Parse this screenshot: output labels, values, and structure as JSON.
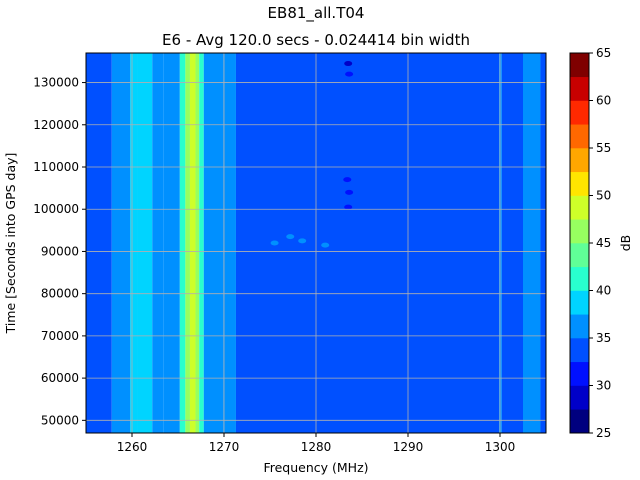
{
  "chart_data": {
    "type": "heatmap",
    "title": "EB81_all.T04",
    "subtitle": "E6 - Avg 120.0 secs - 0.024414 bin width",
    "xlabel": "Frequency (MHz)",
    "ylabel": "Time [Seconds into GPS day]",
    "xlim": [
      1255,
      1305
    ],
    "ylim": [
      47000,
      137000
    ],
    "xticks": [
      1260,
      1270,
      1280,
      1290,
      1300
    ],
    "yticks": [
      50000,
      60000,
      70000,
      80000,
      90000,
      100000,
      110000,
      120000,
      130000
    ],
    "grid": true,
    "colorbar": {
      "label": "dB",
      "min": 25,
      "max": 65,
      "ticks": [
        25,
        30,
        35,
        40,
        45,
        50,
        55,
        60,
        65
      ],
      "levels": 16,
      "colors": [
        "#00007f",
        "#0000c8",
        "#0010ff",
        "#0050ff",
        "#0090ff",
        "#00d4ff",
        "#29ffce",
        "#60ff97",
        "#97ff60",
        "#ceff29",
        "#ffe500",
        "#ffa700",
        "#ff6800",
        "#ff2900",
        "#c80000",
        "#7f0000"
      ]
    },
    "bands": [
      {
        "from": 1255.0,
        "to": 1257.8,
        "value": 33.5
      },
      {
        "from": 1257.8,
        "to": 1259.8,
        "value": 36.5
      },
      {
        "from": 1259.8,
        "to": 1260.6,
        "value": 37.5
      },
      {
        "from": 1260.6,
        "to": 1262.2,
        "value": 39.5
      },
      {
        "from": 1262.2,
        "to": 1263.4,
        "value": 37.0
      },
      {
        "from": 1263.4,
        "to": 1265.2,
        "value": 36.5
      },
      {
        "from": 1265.2,
        "to": 1265.8,
        "value": 40.5
      },
      {
        "from": 1265.8,
        "to": 1266.3,
        "value": 45.5
      },
      {
        "from": 1266.3,
        "to": 1266.9,
        "value": 48.5
      },
      {
        "from": 1266.9,
        "to": 1267.3,
        "value": 45.5
      },
      {
        "from": 1267.3,
        "to": 1267.8,
        "value": 40.5
      },
      {
        "from": 1267.8,
        "to": 1269.9,
        "value": 36.5
      },
      {
        "from": 1269.9,
        "to": 1271.3,
        "value": 36.0
      },
      {
        "from": 1271.3,
        "to": 1299.9,
        "value": 33.5
      },
      {
        "from": 1299.9,
        "to": 1300.2,
        "value": 36.5
      },
      {
        "from": 1300.2,
        "to": 1302.5,
        "value": 33.5
      },
      {
        "from": 1302.5,
        "to": 1304.4,
        "value": 36.5
      },
      {
        "from": 1304.4,
        "to": 1305.0,
        "value": 33.5
      }
    ],
    "features": [
      {
        "type": "blob",
        "freq": 1283.5,
        "time": 134500,
        "value": 29.0
      },
      {
        "type": "blob",
        "freq": 1283.6,
        "time": 132000,
        "value": 30.5
      },
      {
        "type": "blob",
        "freq": 1283.4,
        "time": 107000,
        "value": 30.5
      },
      {
        "type": "blob",
        "freq": 1283.6,
        "time": 104000,
        "value": 31.0
      },
      {
        "type": "blob",
        "freq": 1283.5,
        "time": 100500,
        "value": 31.0
      },
      {
        "type": "blob",
        "freq": 1278.5,
        "time": 92500,
        "value": 36.5
      },
      {
        "type": "blob",
        "freq": 1277.2,
        "time": 93500,
        "value": 36.5
      },
      {
        "type": "blob",
        "freq": 1275.5,
        "time": 92000,
        "value": 36.5
      },
      {
        "type": "blob",
        "freq": 1281.0,
        "time": 91500,
        "value": 36.5
      }
    ]
  }
}
